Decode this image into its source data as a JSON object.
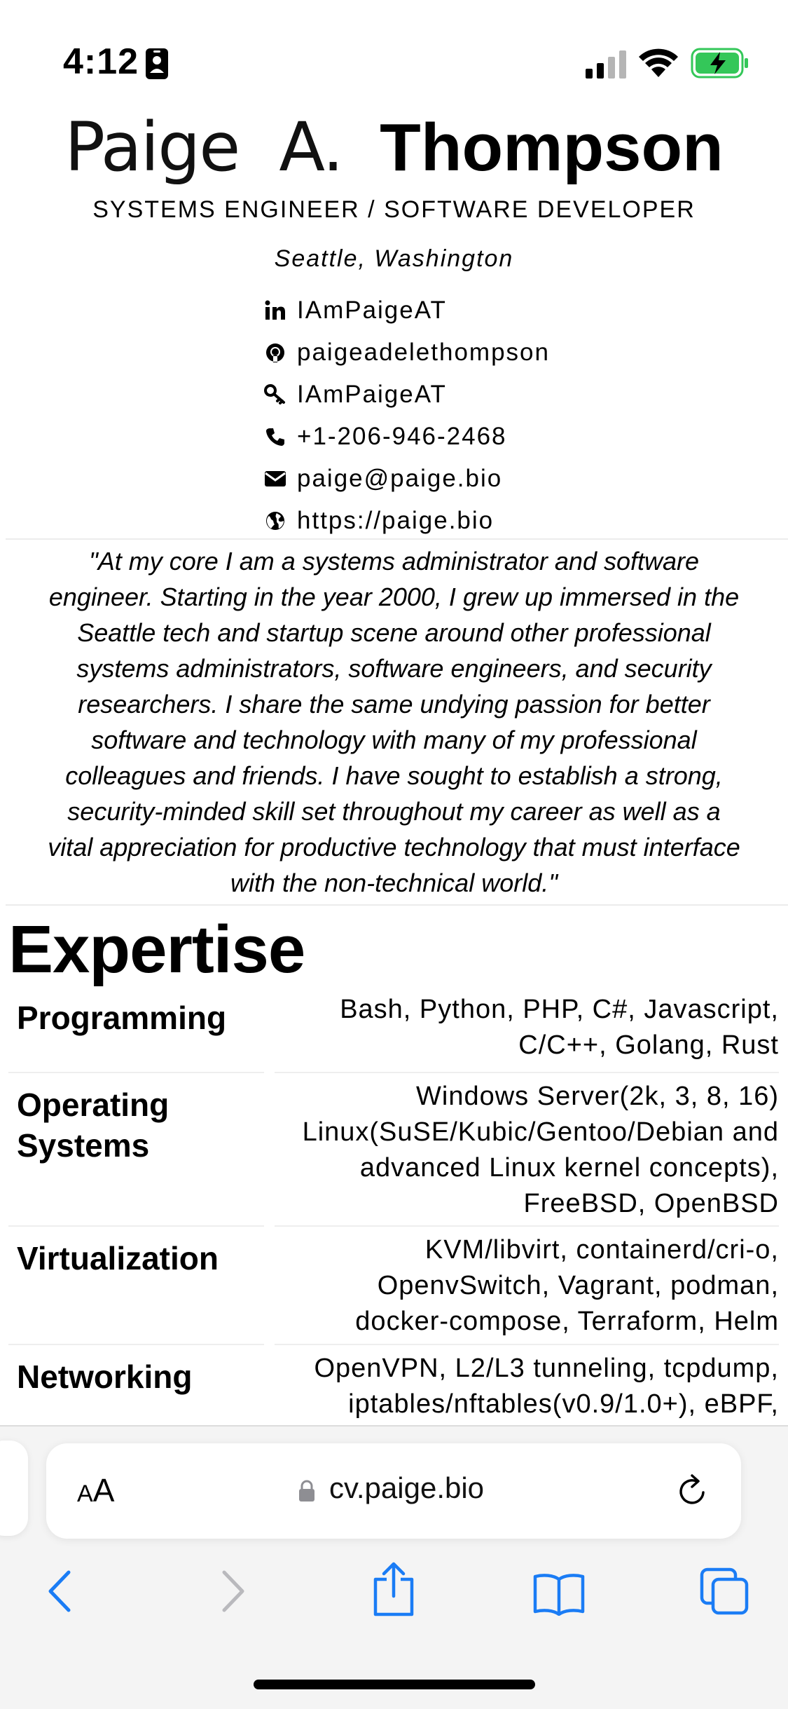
{
  "status_bar": {
    "time": "4:12",
    "battery_color": "#34c759"
  },
  "header": {
    "first_name": "Paige",
    "middle_initial": "A.",
    "last_name": "Thompson",
    "title": "SYSTEMS ENGINEER / SOFTWARE DEVELOPER",
    "location": "Seattle, Washington"
  },
  "contacts": [
    {
      "icon": "linkedin-icon",
      "text": "IAmPaigeAT"
    },
    {
      "icon": "github-icon",
      "text": "paigeadelethompson"
    },
    {
      "icon": "key-icon",
      "text": "IAmPaigeAT"
    },
    {
      "icon": "phone-icon",
      "text": "+1-206-946-2468"
    },
    {
      "icon": "envelope-icon",
      "text": "paige@paige.bio"
    },
    {
      "icon": "globe-icon",
      "text": "https://paige.bio"
    }
  ],
  "quote": "\"At my core I am a systems administrator and software engineer. Starting in the year 2000, I grew up immersed in the Seattle tech and startup scene around other professional systems administrators, software engineers, and security researchers. I share the same undying passion for better software and technology with many of my professional colleagues and friends. I have sought to establish a strong, security-minded skill set throughout my career as well as a vital appreciation for productive technology that must interface with the non-technical world.\"",
  "quote_lines": [
    "\"At my core I am a systems administrator and software",
    "engineer. Starting in the year 2000, I grew up immersed in the",
    "Seattle tech and startup scene around other professional",
    "systems administrators, software engineers, and security",
    "researchers. I share the same undying passion for better",
    "software and technology with many of my professional",
    "colleagues and friends. I have sought to establish a strong,",
    "security-minded skill set throughout my career as well as a",
    "vital appreciation for productive technology that must interface",
    "with the non-technical world.\""
  ],
  "expertise": {
    "title": "Expertise",
    "rows": [
      {
        "label": "Programming",
        "value_lines": [
          "Bash, Python, PHP, C#, Javascript,",
          "C/C++, Golang, Rust"
        ]
      },
      {
        "label": "Operating Systems",
        "label_lines": [
          "Operating",
          "Systems"
        ],
        "value_lines": [
          "Windows Server(2k, 3, 8, 16)",
          "Linux(SuSE/Kubic/Gentoo/Debian and",
          "advanced Linux kernel concepts),",
          "FreeBSD, OpenBSD"
        ]
      },
      {
        "label": "Virtualization",
        "value_lines": [
          "KVM/libvirt, containerd/cri-o,",
          "OpenvSwitch, Vagrant, podman,",
          "docker-compose, Terraform, Helm"
        ]
      },
      {
        "label": "Networking",
        "value_lines": [
          "OpenVPN, L2/L3 tunneling, tcpdump,",
          "iptables/nftables(v0.9/1.0+), eBPF,"
        ]
      }
    ]
  },
  "browser": {
    "aa_label_small": "A",
    "aa_label_large": "A",
    "url": "cv.paige.bio",
    "accent_color": "#1a7cf5"
  }
}
